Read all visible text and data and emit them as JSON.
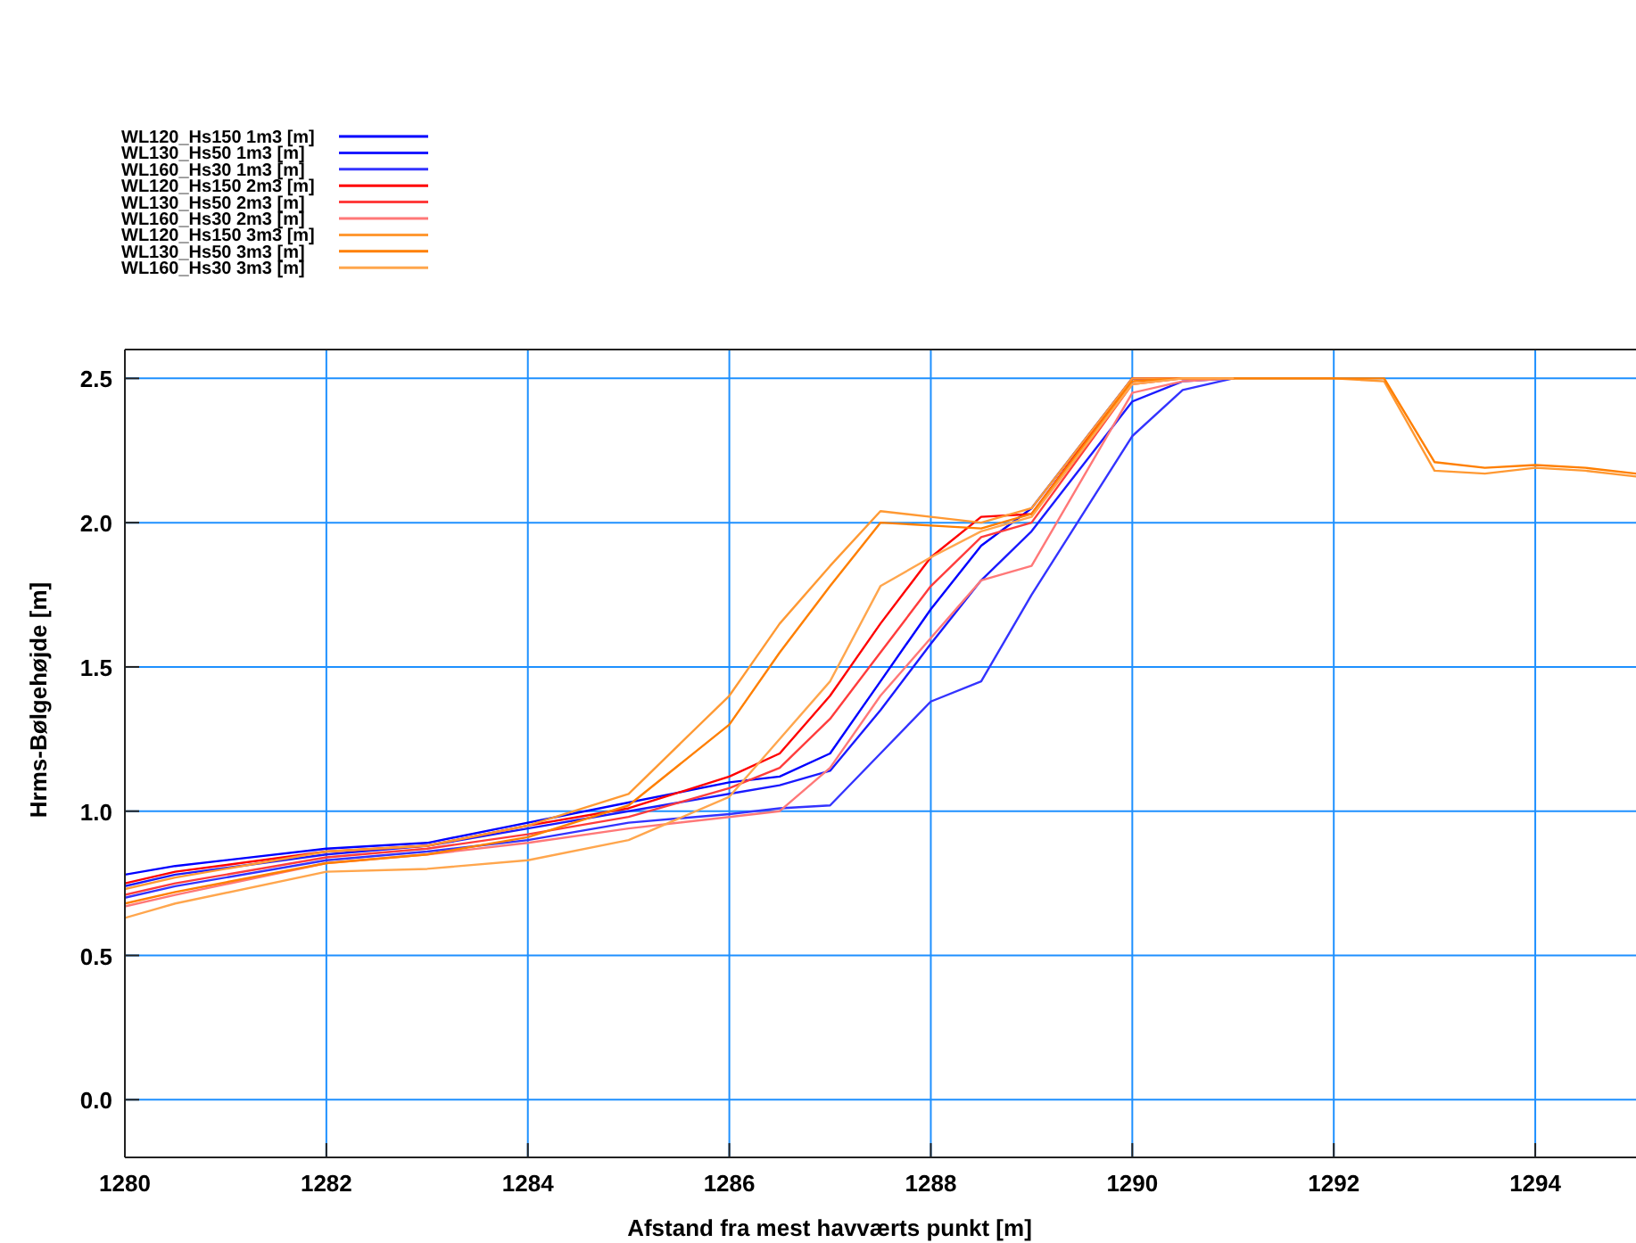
{
  "chart_data": {
    "type": "line",
    "xlabel": "Afstand fra mest havværts punkt [m]",
    "ylabel": "Hrms-Bølgehøjde [m]",
    "x": [
      1280,
      1280.5,
      1282,
      1283,
      1284,
      1285,
      1286,
      1286.5,
      1287,
      1287.5,
      1288,
      1288.5,
      1289,
      1290,
      1290.5,
      1291,
      1292,
      1292.5,
      1293,
      1293.5,
      1294,
      1294.5,
      1295
    ],
    "series": [
      {
        "name": "WL120_Hs150 1m3 [m]",
        "color": "#0000ff",
        "values": [
          0.78,
          0.81,
          0.87,
          0.89,
          0.96,
          1.03,
          1.1,
          1.12,
          1.2,
          1.45,
          1.7,
          1.92,
          2.05,
          2.5,
          2.5,
          2.5,
          null,
          null,
          null,
          null,
          null,
          null,
          null
        ]
      },
      {
        "name": "WL130_Hs50 1m3 [m]",
        "color": "#1a1aff",
        "values": [
          0.74,
          0.78,
          0.85,
          0.88,
          0.94,
          1,
          1.06,
          1.09,
          1.14,
          1.35,
          1.58,
          1.8,
          1.97,
          2.42,
          2.49,
          2.5,
          null,
          null,
          null,
          null,
          null,
          null,
          null
        ]
      },
      {
        "name": "WL160_Hs30 1m3 [m]",
        "color": "#3333ff",
        "values": [
          0.7,
          0.74,
          0.83,
          0.86,
          0.9,
          0.96,
          0.99,
          1.01,
          1.02,
          1.2,
          1.38,
          1.45,
          1.75,
          2.3,
          2.46,
          2.5,
          null,
          null,
          null,
          null,
          null,
          null,
          null
        ]
      },
      {
        "name": "WL120_Hs150 2m3 [m]",
        "color": "#ff0000",
        "values": [
          0.75,
          0.79,
          0.86,
          0.88,
          0.95,
          1.01,
          1.12,
          1.2,
          1.4,
          1.65,
          1.88,
          2.02,
          2.03,
          2.5,
          2.5,
          2.5,
          null,
          null,
          null,
          null,
          null,
          null,
          null
        ]
      },
      {
        "name": "WL130_Hs50 2m3 [m]",
        "color": "#ff3c3c",
        "values": [
          0.71,
          0.75,
          0.84,
          0.87,
          0.92,
          0.98,
          1.08,
          1.15,
          1.32,
          1.55,
          1.78,
          1.95,
          2,
          2.48,
          2.5,
          2.5,
          null,
          null,
          null,
          null,
          null,
          null,
          null
        ]
      },
      {
        "name": "WL160_Hs30 2m3 [m]",
        "color": "#ff7878",
        "values": [
          0.67,
          0.71,
          0.82,
          0.85,
          0.89,
          0.94,
          0.98,
          1,
          1.15,
          1.4,
          1.6,
          1.8,
          1.85,
          2.45,
          2.49,
          2.5,
          null,
          null,
          null,
          null,
          null,
          null,
          null
        ]
      },
      {
        "name": "WL120_Hs150 3m3 [m]",
        "color": "#ff9933",
        "values": [
          0.73,
          0.77,
          0.86,
          0.88,
          0.95,
          1.06,
          1.4,
          1.65,
          1.85,
          2.04,
          2.02,
          2,
          2.05,
          2.5,
          2.5,
          2.5,
          2.5,
          2.49,
          2.18,
          2.17,
          2.19,
          2.18,
          2.16
        ]
      },
      {
        "name": "WL130_Hs50 3m3 [m]",
        "color": "#ff7f00",
        "values": [
          0.68,
          0.72,
          0.82,
          0.85,
          0.91,
          1.02,
          1.3,
          1.55,
          1.78,
          2,
          1.99,
          1.98,
          2.03,
          2.49,
          2.5,
          2.5,
          2.5,
          2.5,
          2.21,
          2.19,
          2.2,
          2.19,
          2.17
        ]
      },
      {
        "name": "WL160_Hs30 3m3 [m]",
        "color": "#ffa64d",
        "values": [
          0.63,
          0.68,
          0.79,
          0.8,
          0.83,
          0.9,
          1.05,
          1.25,
          1.45,
          1.78,
          1.88,
          1.97,
          2.02,
          2.48,
          2.5,
          2.5,
          null,
          null,
          null,
          null,
          null,
          null,
          null
        ]
      }
    ],
    "xlim": [
      1280,
      1295
    ],
    "xticks": [
      1280,
      1282,
      1284,
      1286,
      1288,
      1290,
      1292,
      1294
    ],
    "ylim": [
      -0.2,
      2.6
    ],
    "yticks": [
      {
        "value": 0,
        "label": "0.0"
      },
      0.5,
      {
        "value": 1,
        "label": "1.0"
      },
      1.5,
      {
        "value": 2,
        "label": "2.0"
      },
      2.5
    ],
    "grid": true,
    "legend": "top left",
    "line_style": "solid"
  }
}
